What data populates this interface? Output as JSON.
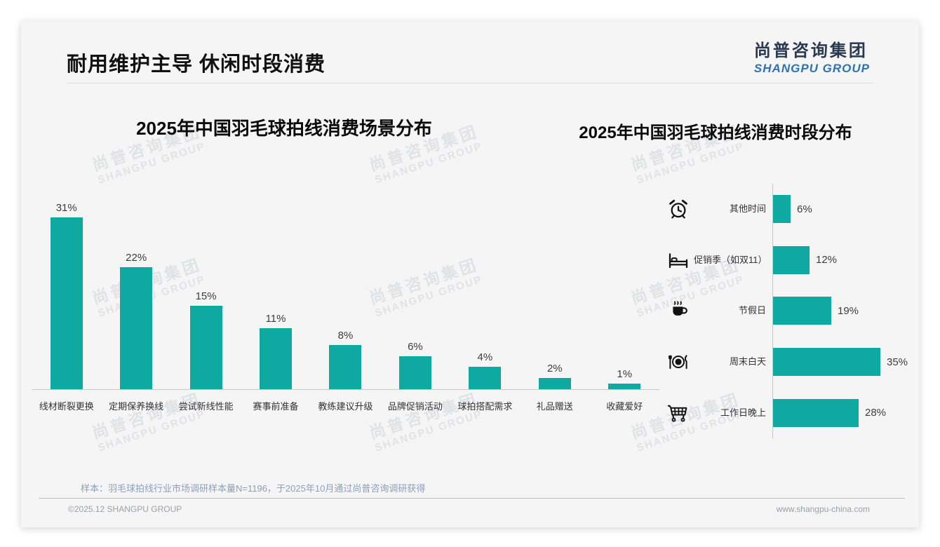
{
  "page": {
    "title": "耐用维护主导 休闲时段消费",
    "logo": {
      "cn": "尚普咨询集团",
      "en": "SHANGPU GROUP"
    },
    "watermark": {
      "line1": "尚普咨询集团",
      "line2": "SHANGPU GROUP"
    },
    "footer": {
      "note": "样本：羽毛球拍线行业市场调研样本量N=1196，于2025年10月通过尚普咨询调研获得",
      "copyright": "©2025.12 SHANGPU GROUP",
      "website": "www.shangpu-china.com"
    }
  },
  "colors": {
    "bar": "#0EA9A0",
    "logo_cn": "#2A3950",
    "logo_en": "#2D72B3",
    "icon": "#111111"
  },
  "chart_data": [
    {
      "type": "bar",
      "orientation": "vertical",
      "title": "2025年中国羽毛球拍线消费场景分布",
      "categories": [
        "线材断裂更换",
        "定期保养换线",
        "尝试新线性能",
        "赛事前准备",
        "教练建议升级",
        "品牌促销活动",
        "球拍搭配需求",
        "礼品赠送",
        "收藏爱好"
      ],
      "values": [
        31,
        22,
        15,
        11,
        8,
        6,
        4,
        2,
        1
      ],
      "unit": "%",
      "value_labels": true,
      "grid": false,
      "ylim": [
        0,
        35
      ],
      "xlabel": "",
      "ylabel": ""
    },
    {
      "type": "bar",
      "orientation": "horizontal",
      "title": "2025年中国羽毛球拍线消费时段分布",
      "categories": [
        "其他时间",
        "促销季（如双11）",
        "节假日",
        "周末白天",
        "工作日晚上"
      ],
      "values": [
        6,
        12,
        19,
        35,
        28
      ],
      "icons": [
        "alarm-clock-icon",
        "bed-icon",
        "coffee-cup-icon",
        "dining-plate-icon",
        "shopping-cart-icon"
      ],
      "unit": "%",
      "value_labels": true,
      "grid": false,
      "xlim": [
        0,
        40
      ],
      "xlabel": "",
      "ylabel": ""
    }
  ]
}
